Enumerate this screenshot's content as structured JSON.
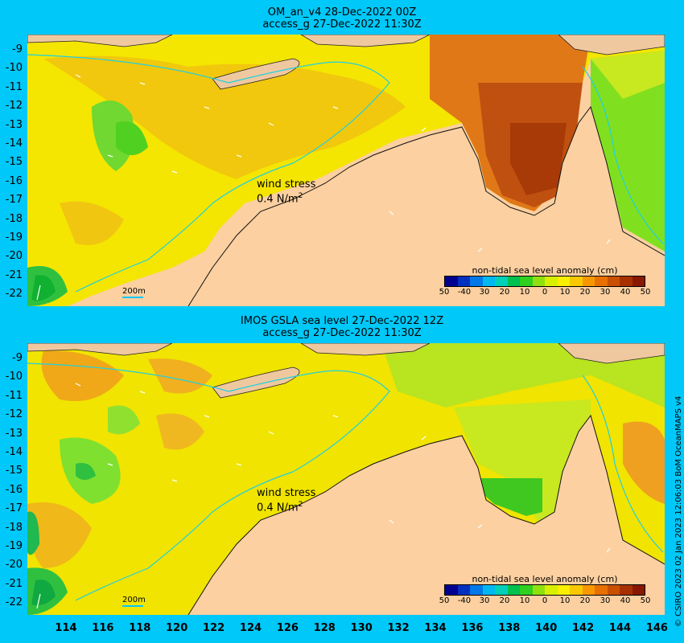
{
  "panels": [
    {
      "title_line1": "OM_an_v4  28-Dec-2022 00Z",
      "title_line2": "access_g 27-Dec-2022 11:30Z"
    },
    {
      "title_line1": "IMOS GSLA sea level  27-Dec-2022 12Z",
      "title_line2": "access_g 27-Dec-2022 11:30Z"
    }
  ],
  "wind_stress": {
    "label": "wind stress",
    "value": "0.4 N/m",
    "superscript": "2"
  },
  "bathymetry_label": "200m",
  "colorbar": {
    "title": "non-tidal sea level anomaly (cm)",
    "ticks": [
      "50",
      "-40",
      "30",
      "20",
      "10",
      "0",
      "10",
      "20",
      "30",
      "40",
      "50"
    ],
    "colors": [
      "#000090",
      "#0030c0",
      "#0078e8",
      "#00b8f0",
      "#00d0b8",
      "#00c050",
      "#30d020",
      "#90e010",
      "#d8f000",
      "#f8f000",
      "#f8c800",
      "#f89800",
      "#e87000",
      "#c85000",
      "#a83000",
      "#881800"
    ]
  },
  "y_axis": [
    "-9",
    "-10",
    "-11",
    "-12",
    "-13",
    "-14",
    "-15",
    "-16",
    "-17",
    "-18",
    "-19",
    "-20",
    "-21",
    "-22"
  ],
  "x_axis": [
    "114",
    "116",
    "118",
    "120",
    "122",
    "124",
    "126",
    "128",
    "130",
    "132",
    "134",
    "136",
    "138",
    "140",
    "142",
    "144",
    "146"
  ],
  "credit": "© CSIRO 2023   02 Jan 2023 12:06:03 BoM OceanMAPS v4",
  "colors": {
    "background": "#00c8f8",
    "land": "#fcd0a0",
    "island": "#f0c8a0",
    "anomaly_high": "#b04810",
    "anomaly_yellow": "#f0e800",
    "anomaly_green": "#60d820",
    "anomaly_orange": "#f0a818"
  }
}
